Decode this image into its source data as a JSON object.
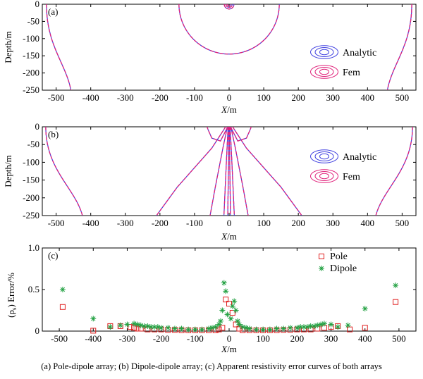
{
  "chart_data": [
    {
      "type": "contour",
      "panel_label": "(a)",
      "xlabel_italic": "X",
      "xlabel_unit": "/m",
      "ylabel": "Depth/m",
      "xlim": [
        -540,
        540
      ],
      "ylim": [
        -250,
        0
      ],
      "x_ticks": [
        -500,
        -400,
        -300,
        -200,
        -100,
        0,
        100,
        200,
        300,
        400,
        500
      ],
      "y_ticks": [
        0,
        -50,
        -100,
        -150,
        -200,
        -250
      ],
      "legend": [
        {
          "label": "Analytic",
          "color": "#4040e0"
        },
        {
          "label": "Fem",
          "color": "#e0207a"
        }
      ],
      "contours": [
        {
          "kind": "arc",
          "cx": 0,
          "cy": 0,
          "r": 5
        },
        {
          "kind": "arc",
          "cx": 0,
          "cy": 0,
          "r": 9
        },
        {
          "kind": "arc",
          "cx": 0,
          "cy": 0,
          "r": 14
        },
        {
          "kind": "arc",
          "cx": 0,
          "cy": 0,
          "r": 145
        },
        {
          "kind": "bowl",
          "x_top": -528,
          "x_bottom": -468
        },
        {
          "kind": "bowl",
          "x_top": 528,
          "x_bottom": 468
        }
      ]
    },
    {
      "type": "contour",
      "panel_label": "(b)",
      "xlabel_italic": "X",
      "xlabel_unit": "/m",
      "ylabel": "Depth/m",
      "xlim": [
        -540,
        540
      ],
      "ylim": [
        -250,
        0
      ],
      "x_ticks": [
        -500,
        -400,
        -300,
        -200,
        -100,
        0,
        100,
        200,
        300,
        400,
        500
      ],
      "y_ticks": [
        0,
        -50,
        -100,
        -150,
        -200,
        -250
      ],
      "legend": [
        {
          "label": "Analytic",
          "color": "#4040e0"
        },
        {
          "label": "Fem",
          "color": "#e0207a"
        }
      ],
      "contours": [
        {
          "kind": "bowl",
          "x_top": -530,
          "x_bottom": -440
        },
        {
          "kind": "bowl",
          "x_top": 530,
          "x_bottom": 440
        },
        {
          "kind": "curve",
          "pts": [
            [
              -10,
              0
            ],
            [
              -50,
              -60
            ],
            [
              -150,
              -170
            ],
            [
              -210,
              -250
            ]
          ]
        },
        {
          "kind": "curve",
          "pts": [
            [
              10,
              0
            ],
            [
              50,
              -60
            ],
            [
              150,
              -170
            ],
            [
              210,
              -250
            ]
          ]
        },
        {
          "kind": "curve",
          "pts": [
            [
              -5,
              0
            ],
            [
              -18,
              -60
            ],
            [
              -40,
              -170
            ],
            [
              -55,
              -250
            ]
          ]
        },
        {
          "kind": "curve",
          "pts": [
            [
              5,
              0
            ],
            [
              18,
              -60
            ],
            [
              40,
              -170
            ],
            [
              55,
              -250
            ]
          ]
        },
        {
          "kind": "curve",
          "pts": [
            [
              -3,
              0
            ],
            [
              -8,
              -100
            ],
            [
              -15,
              -250
            ]
          ]
        },
        {
          "kind": "curve",
          "pts": [
            [
              3,
              0
            ],
            [
              8,
              -100
            ],
            [
              15,
              -250
            ]
          ]
        },
        {
          "kind": "curve",
          "pts": [
            [
              -1,
              0
            ],
            [
              -2,
              -120
            ],
            [
              -4,
              -250
            ]
          ]
        },
        {
          "kind": "curve",
          "pts": [
            [
              1,
              0
            ],
            [
              2,
              -120
            ],
            [
              4,
              -250
            ]
          ]
        },
        {
          "kind": "curve",
          "pts": [
            [
              -4,
              0
            ],
            [
              -25,
              -40
            ],
            [
              -50,
              -32
            ],
            [
              -60,
              -10
            ],
            [
              -64,
              0
            ]
          ]
        },
        {
          "kind": "curve",
          "pts": [
            [
              4,
              0
            ],
            [
              25,
              -40
            ],
            [
              50,
              -32
            ],
            [
              60,
              -10
            ],
            [
              64,
              0
            ]
          ]
        }
      ]
    },
    {
      "type": "scatter",
      "panel_label": "(c)",
      "ylabel_rho": "(ρ",
      "ylabel_sub": "s",
      "ylabel_rest": ") Error/%",
      "xlabel_italic": "X",
      "xlabel_unit": "/m",
      "xlim": [
        -550,
        550
      ],
      "ylim": [
        0,
        1.0
      ],
      "x_ticks": [
        -500,
        -400,
        -300,
        -200,
        -100,
        0,
        100,
        200,
        300,
        400,
        500
      ],
      "y_ticks": [
        0,
        0.5,
        1.0
      ],
      "y_tick_labels": [
        "0",
        "0.5",
        "1.0"
      ],
      "series": [
        {
          "name": "Pole",
          "marker": "square",
          "color": "#e02020",
          "points": [
            [
              -490,
              0.29
            ],
            [
              -400,
              0.005
            ],
            [
              -350,
              0.06
            ],
            [
              -320,
              0.06
            ],
            [
              -290,
              0.05
            ],
            [
              -280,
              0.04
            ],
            [
              -270,
              0.03
            ],
            [
              -260,
              0.03
            ],
            [
              -240,
              0.02
            ],
            [
              -220,
              0.02
            ],
            [
              -200,
              0.02
            ],
            [
              -180,
              0.015
            ],
            [
              -160,
              0.015
            ],
            [
              -140,
              0.01
            ],
            [
              -120,
              0.01
            ],
            [
              -100,
              0.01
            ],
            [
              -80,
              0.01
            ],
            [
              -60,
              0.01
            ],
            [
              -40,
              0.01
            ],
            [
              -30,
              0.02
            ],
            [
              -20,
              0.04
            ],
            [
              -10,
              0.38
            ],
            [
              0,
              0.33
            ],
            [
              10,
              0.22
            ],
            [
              20,
              0.08
            ],
            [
              30,
              0.03
            ],
            [
              40,
              0.01
            ],
            [
              60,
              0.01
            ],
            [
              80,
              0.01
            ],
            [
              100,
              0.01
            ],
            [
              120,
              0.01
            ],
            [
              140,
              0.01
            ],
            [
              160,
              0.015
            ],
            [
              180,
              0.015
            ],
            [
              200,
              0.02
            ],
            [
              220,
              0.02
            ],
            [
              240,
              0.02
            ],
            [
              260,
              0.03
            ],
            [
              280,
              0.04
            ],
            [
              300,
              0.05
            ],
            [
              320,
              0.06
            ],
            [
              355,
              0.02
            ],
            [
              400,
              0.04
            ],
            [
              490,
              0.35
            ]
          ]
        },
        {
          "name": "Dipole",
          "marker": "star",
          "color": "#20a040",
          "points": [
            [
              -490,
              0.5
            ],
            [
              -400,
              0.15
            ],
            [
              -350,
              0.05
            ],
            [
              -320,
              0.07
            ],
            [
              -300,
              0.08
            ],
            [
              -280,
              0.09
            ],
            [
              -270,
              0.08
            ],
            [
              -260,
              0.07
            ],
            [
              -250,
              0.06
            ],
            [
              -240,
              0.06
            ],
            [
              -230,
              0.05
            ],
            [
              -220,
              0.05
            ],
            [
              -210,
              0.05
            ],
            [
              -200,
              0.04
            ],
            [
              -180,
              0.04
            ],
            [
              -160,
              0.03
            ],
            [
              -140,
              0.03
            ],
            [
              -120,
              0.02
            ],
            [
              -100,
              0.02
            ],
            [
              -80,
              0.02
            ],
            [
              -60,
              0.03
            ],
            [
              -50,
              0.04
            ],
            [
              -40,
              0.05
            ],
            [
              -30,
              0.08
            ],
            [
              -25,
              0.12
            ],
            [
              -20,
              0.25
            ],
            [
              -15,
              0.58
            ],
            [
              -10,
              0.48
            ],
            [
              -5,
              0.2
            ],
            [
              5,
              0.15
            ],
            [
              10,
              0.3
            ],
            [
              15,
              0.36
            ],
            [
              20,
              0.25
            ],
            [
              25,
              0.12
            ],
            [
              30,
              0.08
            ],
            [
              40,
              0.05
            ],
            [
              50,
              0.04
            ],
            [
              60,
              0.03
            ],
            [
              80,
              0.02
            ],
            [
              100,
              0.02
            ],
            [
              120,
              0.02
            ],
            [
              140,
              0.03
            ],
            [
              160,
              0.03
            ],
            [
              180,
              0.04
            ],
            [
              200,
              0.04
            ],
            [
              210,
              0.05
            ],
            [
              220,
              0.05
            ],
            [
              230,
              0.05
            ],
            [
              240,
              0.06
            ],
            [
              250,
              0.06
            ],
            [
              260,
              0.07
            ],
            [
              270,
              0.08
            ],
            [
              280,
              0.09
            ],
            [
              300,
              0.08
            ],
            [
              320,
              0.05
            ],
            [
              350,
              0.07
            ],
            [
              400,
              0.27
            ],
            [
              490,
              0.55
            ]
          ]
        }
      ]
    }
  ],
  "caption": "(a)  Pole-dipole  array;   (b) Dipole-dipole array; (c) Apparent resistivity error curves of both arrays"
}
